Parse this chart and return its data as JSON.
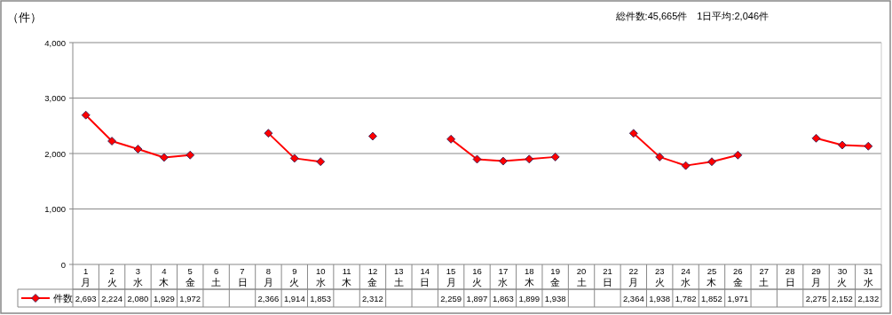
{
  "chart_data": {
    "type": "line",
    "ylabel": "（件）",
    "annotations": [
      "総件数:45,665件　1日平均:2,046件"
    ],
    "categories": [
      "1\n月",
      "2\n火",
      "3\n水",
      "4\n木",
      "5\n金",
      "6\n土",
      "7\n日",
      "8\n月",
      "9\n火",
      "10\n水",
      "11\n木",
      "12\n金",
      "13\n土",
      "14\n日",
      "15\n月",
      "16\n火",
      "17\n水",
      "18\n木",
      "19\n金",
      "20\n土",
      "21\n日",
      "22\n月",
      "23\n火",
      "24\n水",
      "25\n木",
      "26\n金",
      "27\n土",
      "28\n日",
      "29\n月",
      "30\n火",
      "31\n水"
    ],
    "series": [
      {
        "name": "件数",
        "color": "#ff0000",
        "values": [
          2693,
          2224,
          2080,
          1929,
          1972,
          null,
          null,
          2366,
          1914,
          1853,
          null,
          2312,
          null,
          null,
          2259,
          1897,
          1863,
          1899,
          1938,
          null,
          null,
          2364,
          1938,
          1782,
          1852,
          1971,
          null,
          null,
          2275,
          2152,
          2132
        ],
        "value_labels": [
          "2,693",
          "2,224",
          "2,080",
          "1,929",
          "1,972",
          null,
          null,
          "2,366",
          "1,914",
          "1,853",
          null,
          "2,312",
          null,
          null,
          "2,259",
          "1,897",
          "1,863",
          "1,899",
          "1,938",
          null,
          null,
          "2,364",
          "1,938",
          "1,782",
          "1,852",
          "1,971",
          null,
          null,
          "2,275",
          "2,152",
          "2,132"
        ]
      }
    ],
    "ylim": [
      0,
      4000
    ],
    "yticks": [
      0,
      {
        "value": 1000,
        "label": "1,000"
      },
      {
        "value": 2000,
        "label": "2,000"
      },
      {
        "value": 3000,
        "label": "3,000"
      },
      {
        "value": 4000,
        "label": "4,000"
      }
    ],
    "grid": "y",
    "marker": "diamond",
    "line_style": "solid",
    "legend": "bottom"
  }
}
